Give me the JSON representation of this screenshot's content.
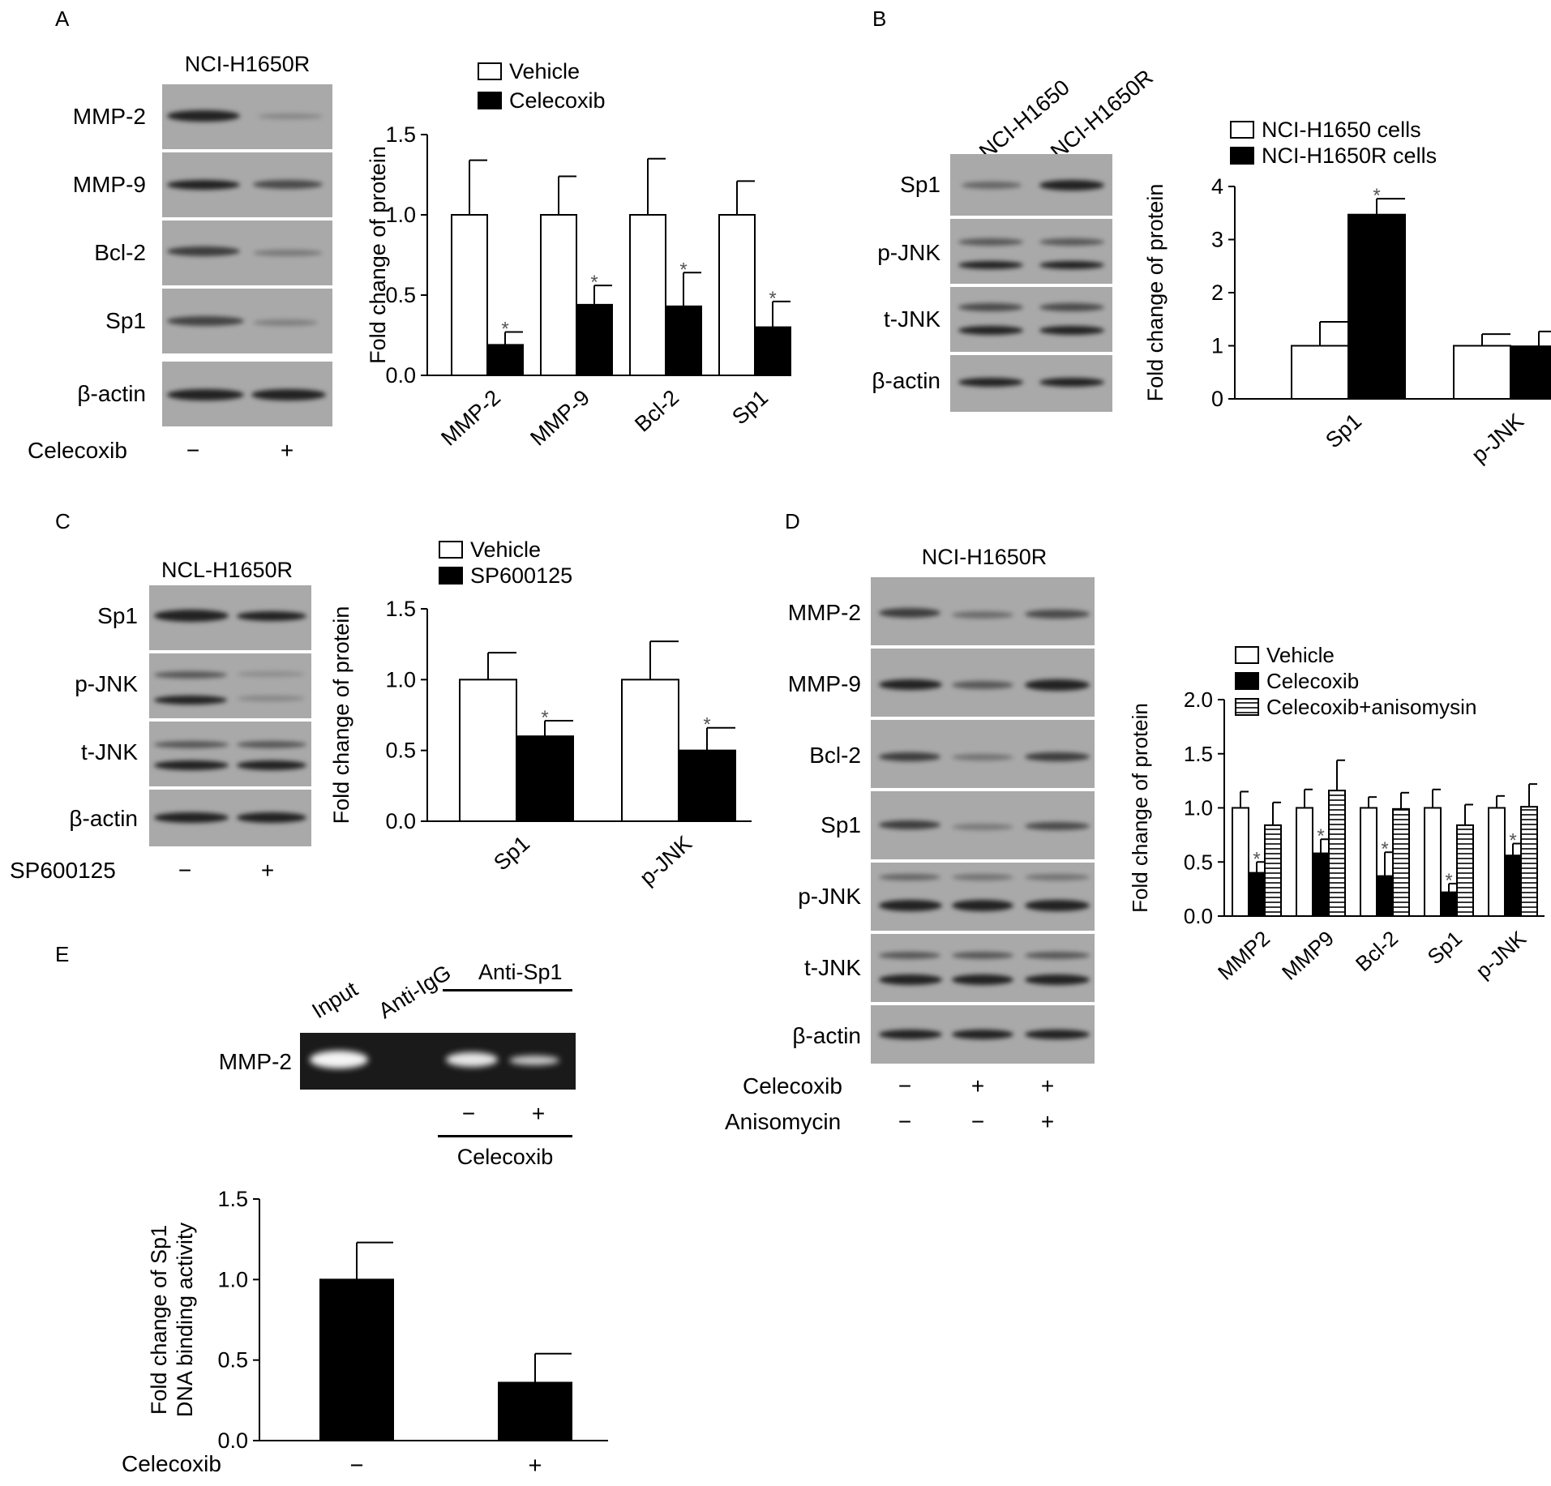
{
  "panels": {
    "A": {
      "label": "A",
      "blot_title": "NCI-H1650R",
      "blot_rows": [
        "MMP-2",
        "MMP-9",
        "Bcl-2",
        "Sp1",
        "β-actin"
      ],
      "treatment": {
        "label": "Celecoxib",
        "signs": [
          "−",
          "+"
        ]
      }
    },
    "B": {
      "label": "B",
      "lane_labels": [
        "NCI-H1650",
        "NCI-H1650R"
      ],
      "blot_rows": [
        "Sp1",
        "p-JNK",
        "t-JNK",
        "β-actin"
      ]
    },
    "C": {
      "label": "C",
      "blot_title": "NCL-H1650R",
      "blot_rows": [
        "Sp1",
        "p-JNK",
        "t-JNK",
        "β-actin"
      ],
      "treatment": {
        "label": "SP600125",
        "signs": [
          "−",
          "+"
        ]
      }
    },
    "D": {
      "label": "D",
      "blot_title": "NCI-H1650R",
      "blot_rows": [
        "MMP-2",
        "MMP-9",
        "Bcl-2",
        "Sp1",
        "p-JNK",
        "t-JNK",
        "β-actin"
      ],
      "treatments": [
        {
          "label": "Celecoxib",
          "signs": [
            "−",
            "+",
            "+"
          ]
        },
        {
          "label": "Anisomycin",
          "signs": [
            "−",
            "−",
            "+"
          ]
        }
      ]
    },
    "E": {
      "label": "E",
      "gel_lanes": [
        "Input",
        "Anti-IgG",
        "Anti-Sp1"
      ],
      "gel_row": "MMP-2",
      "gel_signs": [
        "−",
        "+"
      ],
      "gel_group": "Celecoxib",
      "chart_treatment": {
        "label": "Celecoxib",
        "signs": [
          "−",
          "+"
        ]
      }
    }
  },
  "chart_data": [
    {
      "id": "A",
      "type": "bar",
      "ylabel": "Fold change of protein",
      "ylim": [
        0,
        1.5
      ],
      "yticks": [
        "0.0",
        "0.5",
        "1.0",
        "1.5"
      ],
      "categories": [
        "MMP-2",
        "MMP-9",
        "Bcl-2",
        "Sp1"
      ],
      "series": [
        {
          "name": "Vehicle",
          "color": "#ffffff",
          "values": [
            1.0,
            1.0,
            1.0,
            1.0
          ],
          "errors": [
            0.34,
            0.24,
            0.35,
            0.21
          ]
        },
        {
          "name": "Celecoxib",
          "color": "#000000",
          "values": [
            0.19,
            0.44,
            0.43,
            0.3
          ],
          "errors": [
            0.08,
            0.12,
            0.21,
            0.16
          ],
          "significant": [
            true,
            true,
            true,
            true
          ]
        }
      ]
    },
    {
      "id": "B",
      "type": "bar",
      "ylabel": "Fold change of protein",
      "ylim": [
        0,
        4
      ],
      "yticks": [
        "0",
        "1",
        "2",
        "3",
        "4"
      ],
      "categories": [
        "Sp1",
        "p-JNK"
      ],
      "series": [
        {
          "name": "NCI-H1650 cells",
          "color": "#ffffff",
          "values": [
            1.0,
            1.0
          ],
          "errors": [
            0.45,
            0.22
          ]
        },
        {
          "name": "NCI-H1650R cells",
          "color": "#000000",
          "values": [
            3.47,
            0.99
          ],
          "errors": [
            0.3,
            0.28
          ],
          "significant": [
            true,
            false
          ]
        }
      ]
    },
    {
      "id": "C",
      "type": "bar",
      "ylabel": "Fold change of protein",
      "ylim": [
        0,
        1.5
      ],
      "yticks": [
        "0.0",
        "0.5",
        "1.0",
        "1.5"
      ],
      "categories": [
        "Sp1",
        "p-JNK"
      ],
      "series": [
        {
          "name": "Vehicle",
          "color": "#ffffff",
          "values": [
            1.0,
            1.0
          ],
          "errors": [
            0.19,
            0.27
          ]
        },
        {
          "name": "SP600125",
          "color": "#000000",
          "values": [
            0.6,
            0.5
          ],
          "errors": [
            0.11,
            0.16
          ],
          "significant": [
            true,
            true
          ]
        }
      ]
    },
    {
      "id": "D",
      "type": "bar",
      "ylabel": "Fold change of protein",
      "ylim": [
        0,
        2.0
      ],
      "yticks": [
        "0.0",
        "0.5",
        "1.0",
        "1.5",
        "2.0"
      ],
      "categories": [
        "MMP2",
        "MMP9",
        "Bcl-2",
        "Sp1",
        "p-JNK"
      ],
      "series": [
        {
          "name": "Vehicle",
          "color": "#ffffff",
          "values": [
            1.0,
            1.0,
            1.0,
            1.0,
            1.0
          ],
          "errors": [
            0.15,
            0.17,
            0.1,
            0.17,
            0.11
          ]
        },
        {
          "name": "Celecoxib",
          "color": "#000000",
          "values": [
            0.4,
            0.58,
            0.37,
            0.22,
            0.56
          ],
          "errors": [
            0.1,
            0.13,
            0.22,
            0.08,
            0.11
          ],
          "significant": [
            true,
            true,
            true,
            true,
            true
          ]
        },
        {
          "name": "Celecoxib+anisomysin",
          "color": "hatched",
          "values": [
            0.84,
            1.16,
            0.99,
            0.84,
            1.01
          ],
          "errors": [
            0.21,
            0.28,
            0.15,
            0.19,
            0.21
          ]
        }
      ]
    },
    {
      "id": "E",
      "type": "bar",
      "ylabel": [
        "Fold change of Sp1",
        "DNA binding activity"
      ],
      "ylim": [
        0,
        1.5
      ],
      "yticks": [
        "0.0",
        "0.5",
        "1.0",
        "1.5"
      ],
      "categories": [
        "−",
        "+"
      ],
      "series": [
        {
          "values": [
            1.0,
            0.36
          ],
          "errors": [
            0.23,
            0.18
          ],
          "color": "#000000"
        }
      ]
    }
  ]
}
